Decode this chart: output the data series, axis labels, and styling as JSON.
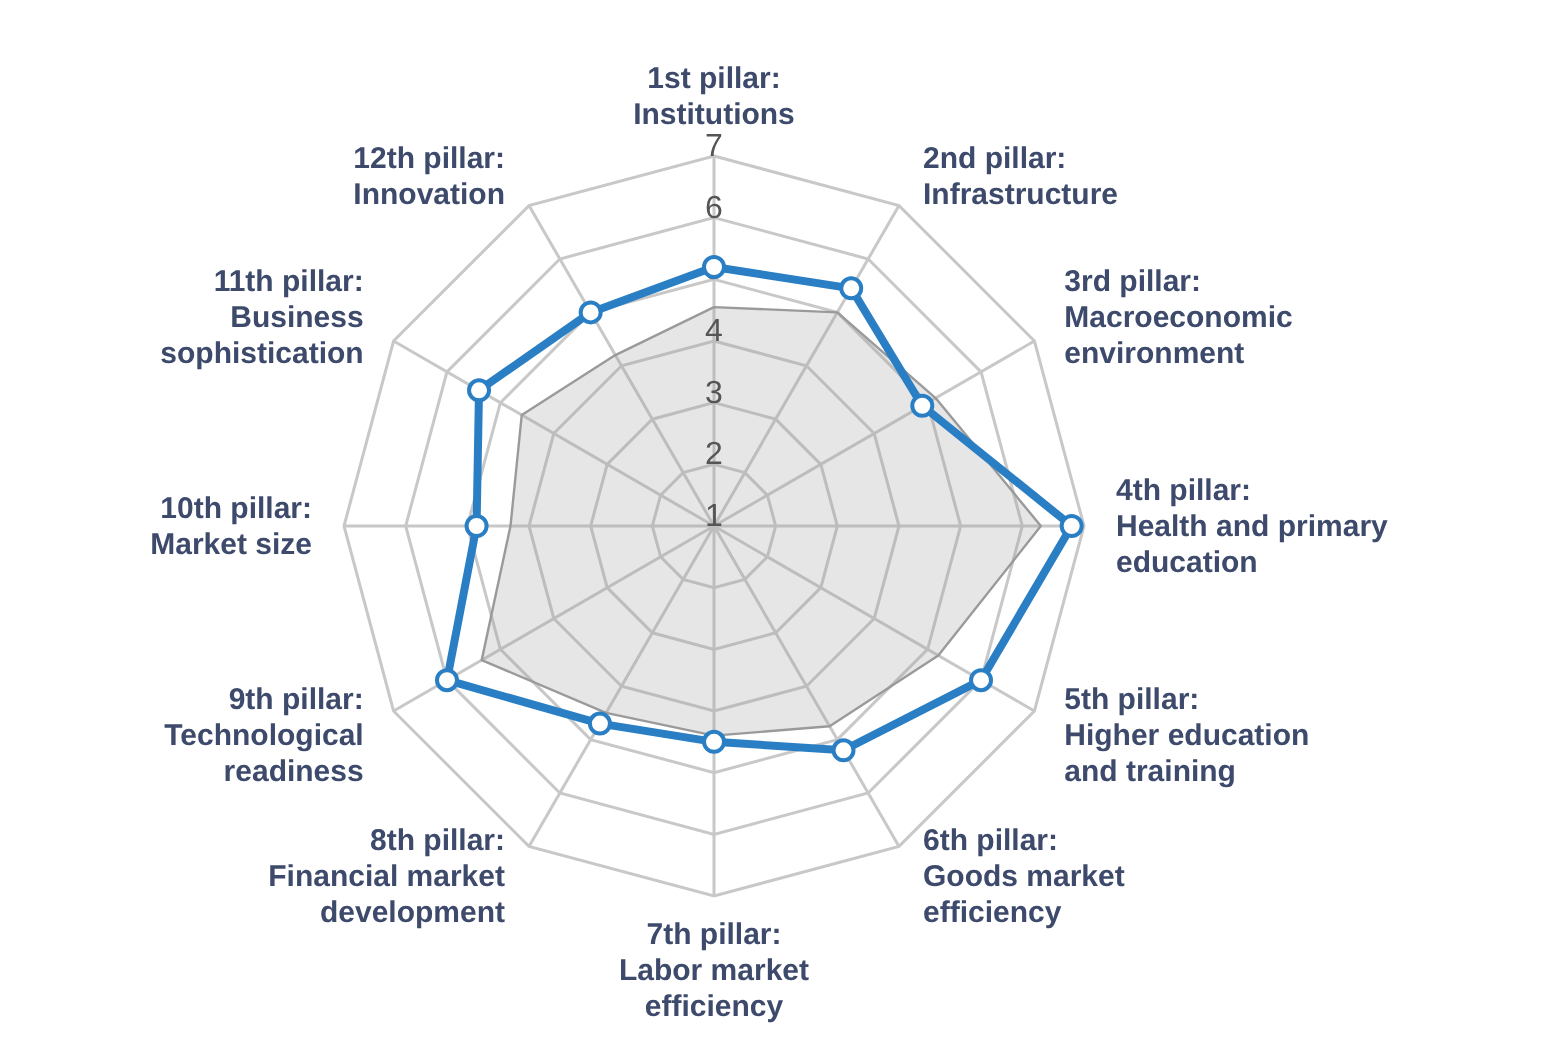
{
  "chart_data": {
    "type": "radar",
    "categories": [
      "1st pillar: Institutions",
      "2nd pillar: Infrastructure",
      "3rd pillar: Macroeconomic environment",
      "4th pillar: Health and primary education",
      "5th pillar: Higher education and training",
      "6th pillar: Goods market efficiency",
      "7th pillar: Labor market efficiency",
      "8th pillar: Financial market development",
      "9th pillar: Technological readiness",
      "10th pillar: Market size",
      "11th pillar: Business sophistication",
      "12th pillar: Innovation"
    ],
    "series": [
      {
        "type": "area",
        "color": "#9a9a9a",
        "marker": "none",
        "values": [
          4.55,
          5.0,
          5.15,
          6.3,
          5.2,
          4.75,
          4.4,
          4.5,
          5.35,
          4.3,
          4.6,
          4.2
        ]
      },
      {
        "color": "#2a7fc4",
        "marker": "circle",
        "values": [
          5.2,
          5.45,
          4.9,
          6.8,
          6.0,
          5.2,
          4.5,
          4.7,
          6.0,
          4.85,
          5.4,
          5.0
        ]
      }
    ],
    "ylim": [
      1,
      7
    ],
    "yticks": [
      1,
      2,
      3,
      4,
      5,
      6,
      7
    ],
    "grid": true,
    "legend": false
  }
}
